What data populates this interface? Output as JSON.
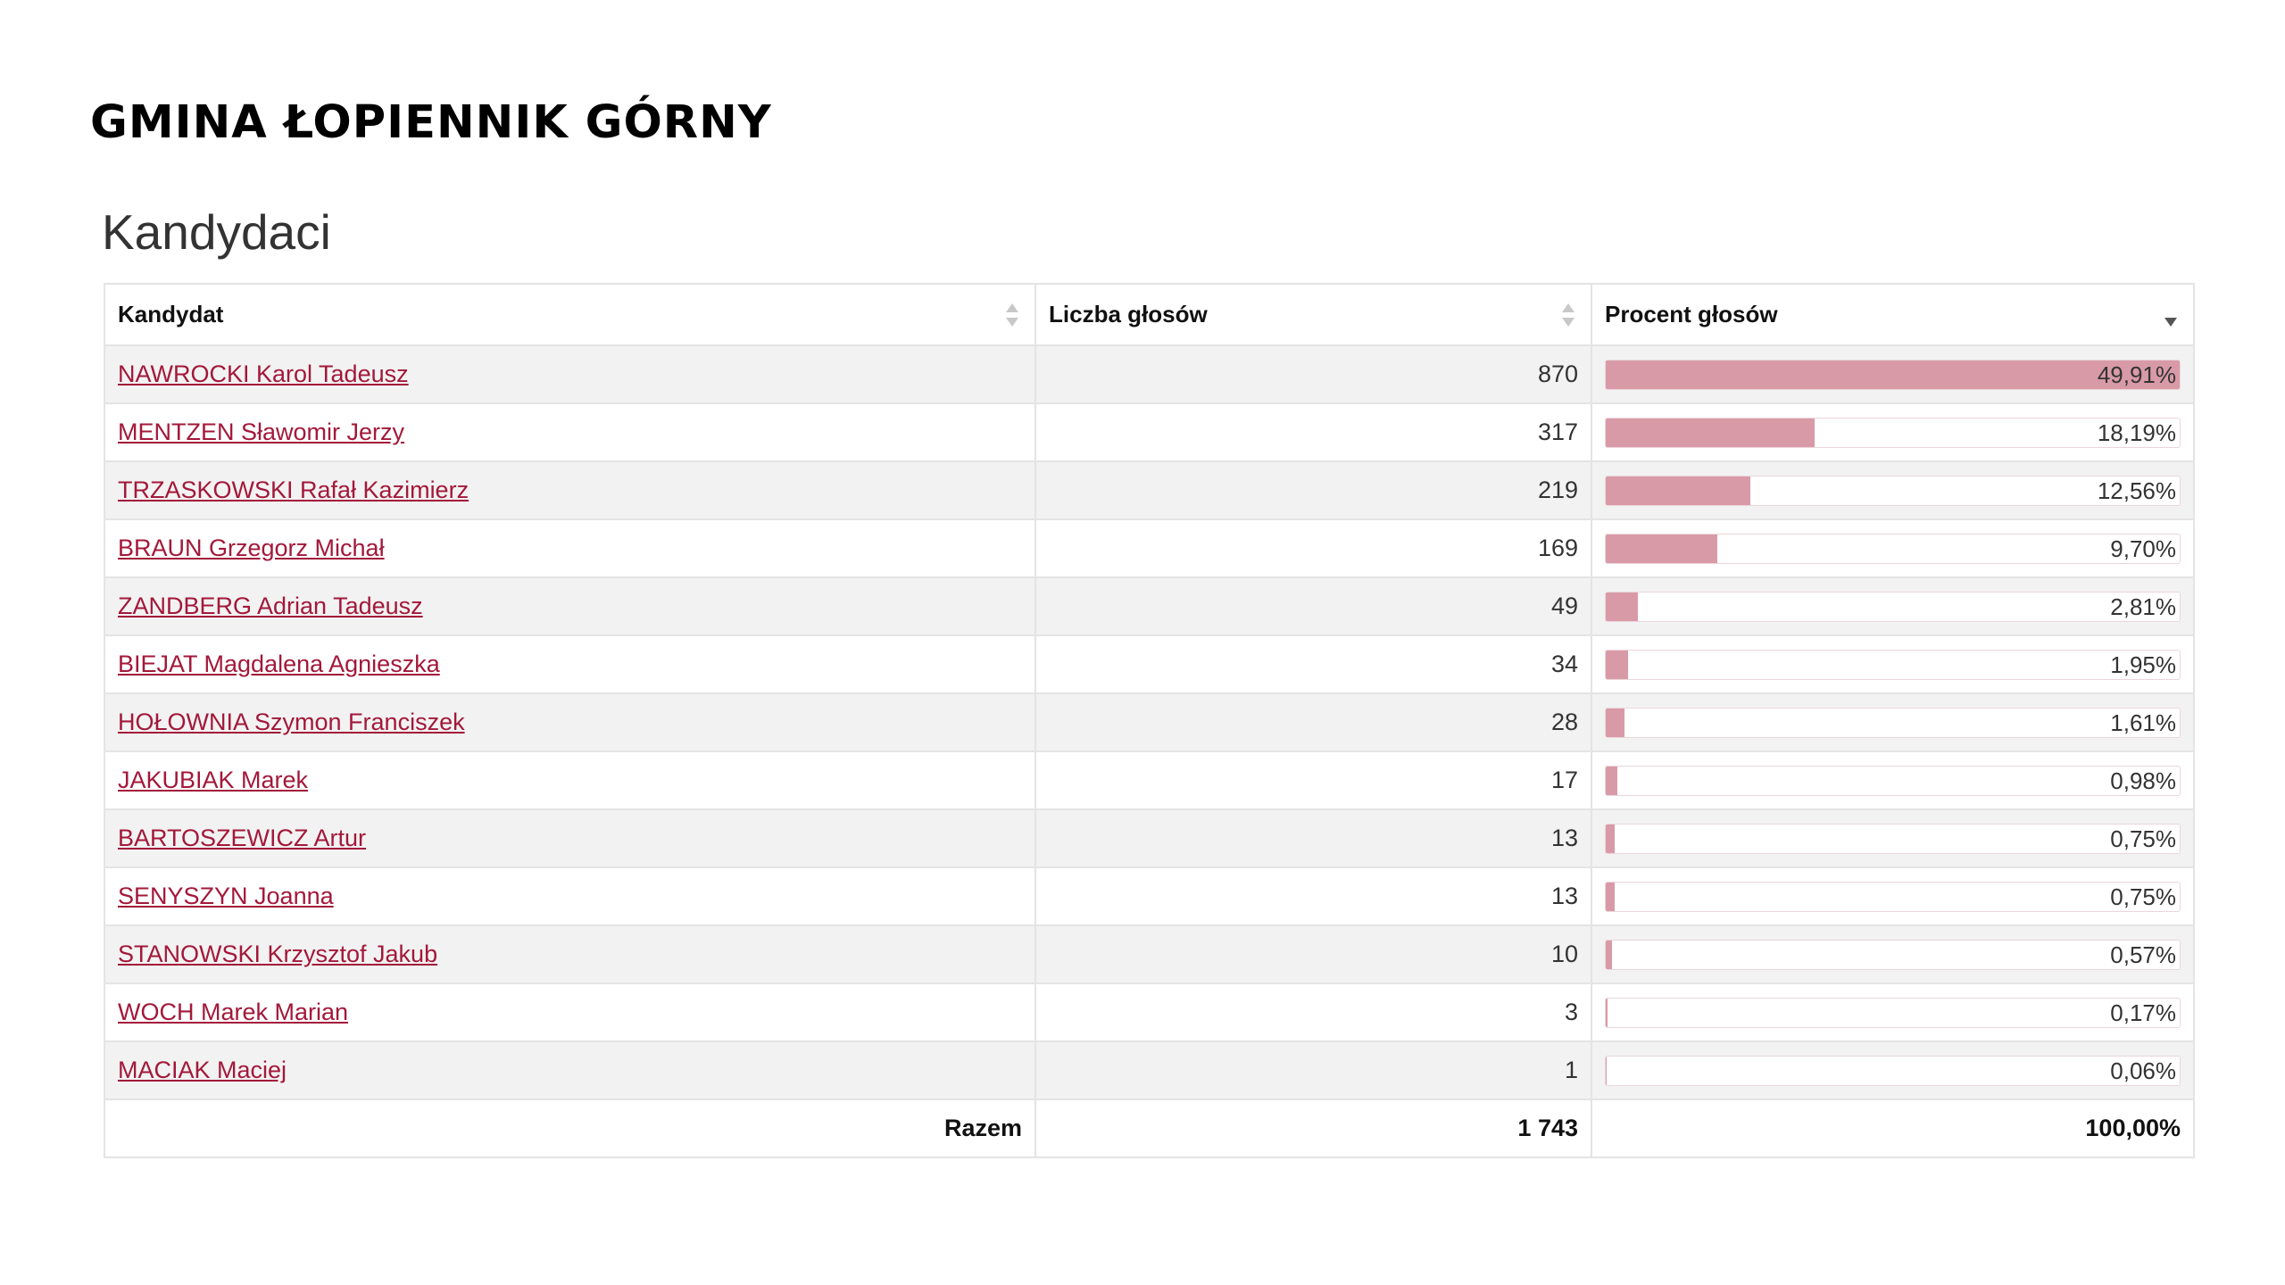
{
  "header": {
    "title": "GMINA ŁOPIENNIK GÓRNY"
  },
  "section": {
    "title": "Kandydaci"
  },
  "table": {
    "columns": [
      "Kandydat",
      "Liczba głosów",
      "Procent głosów"
    ],
    "rows": [
      {
        "name": "NAWROCKI Karol Tadeusz",
        "votes": "870",
        "percent": "49,91%",
        "share": 49.91
      },
      {
        "name": "MENTZEN Sławomir Jerzy",
        "votes": "317",
        "percent": "18,19%",
        "share": 18.19
      },
      {
        "name": "TRZASKOWSKI Rafał Kazimierz",
        "votes": "219",
        "percent": "12,56%",
        "share": 12.56
      },
      {
        "name": "BRAUN Grzegorz Michał",
        "votes": "169",
        "percent": "9,70%",
        "share": 9.7
      },
      {
        "name": "ZANDBERG Adrian Tadeusz",
        "votes": "49",
        "percent": "2,81%",
        "share": 2.81
      },
      {
        "name": "BIEJAT Magdalena Agnieszka",
        "votes": "34",
        "percent": "1,95%",
        "share": 1.95
      },
      {
        "name": "HOŁOWNIA Szymon Franciszek",
        "votes": "28",
        "percent": "1,61%",
        "share": 1.61
      },
      {
        "name": "JAKUBIAK Marek",
        "votes": "17",
        "percent": "0,98%",
        "share": 0.98
      },
      {
        "name": "BARTOSZEWICZ Artur",
        "votes": "13",
        "percent": "0,75%",
        "share": 0.75
      },
      {
        "name": "SENYSZYN Joanna",
        "votes": "13",
        "percent": "0,75%",
        "share": 0.75
      },
      {
        "name": "STANOWSKI Krzysztof Jakub",
        "votes": "10",
        "percent": "0,57%",
        "share": 0.57
      },
      {
        "name": "WOCH Marek Marian",
        "votes": "3",
        "percent": "0,17%",
        "share": 0.17
      },
      {
        "name": "MACIAK Maciej",
        "votes": "1",
        "percent": "0,06%",
        "share": 0.06
      }
    ],
    "footer": {
      "label": "Razem",
      "votes": "1 743",
      "percent": "100,00%"
    },
    "max_share": 49.91
  },
  "colors": {
    "link": "#a3183a",
    "bar_fill": "#d99aa8"
  }
}
